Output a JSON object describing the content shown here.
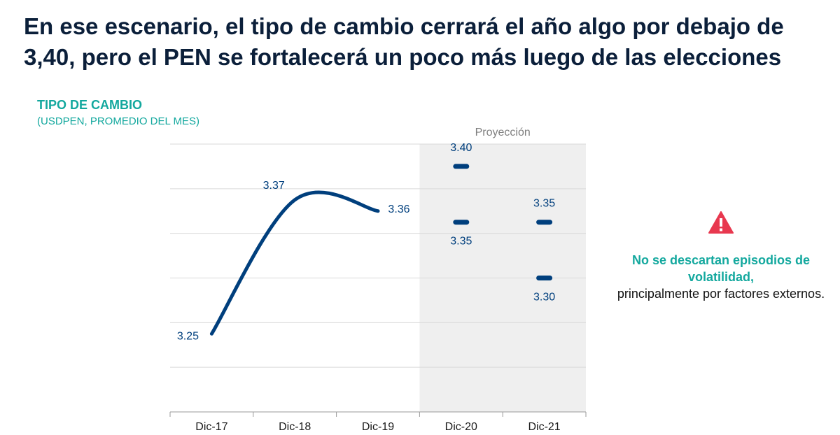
{
  "headline": {
    "line1": "En ese escenario, el tipo de cambio cerrará el año algo por debajo de",
    "line2": "3,40, pero el PEN se fortalecerá un poco más luego de las elecciones"
  },
  "chart_data": {
    "type": "line",
    "title": "TIPO DE CAMBIO",
    "subtitle": "(USDPEN, PROMEDIO DEL MES)",
    "categories": [
      "Dic-17",
      "Dic-18",
      "Dic-19",
      "Dic-20",
      "Dic-21"
    ],
    "ylim": [
      3.18,
      3.42
    ],
    "grid": true,
    "series": [
      {
        "points": [
          {
            "x": "Dic-17",
            "y": 3.25,
            "label": "3.25"
          },
          {
            "x": "Dic-18",
            "y": 3.37,
            "label": "3.37"
          },
          {
            "x": "Dic-19",
            "y": 3.36,
            "label": "3.36"
          }
        ]
      }
    ],
    "projection": {
      "label": "Proyección",
      "categories": [
        "Dic-20",
        "Dic-21"
      ],
      "ranges": [
        {
          "x": "Dic-20",
          "high": 3.4,
          "low": 3.35,
          "high_label": "3.40",
          "low_label": "3.35"
        },
        {
          "x": "Dic-21",
          "high": 3.35,
          "low": 3.3,
          "high_label": "3.35",
          "low_label": "3.30"
        }
      ]
    },
    "colors": {
      "line": "#003f7d",
      "label": "#003f7d",
      "shade": "#efefef",
      "grid": "#d9d9d9"
    }
  },
  "side_note": {
    "icon": "warning-icon",
    "icon_color": "#e8384f",
    "strong": "No se descartan episodios de volatilidad,",
    "normal": "principalmente por factores externos."
  }
}
